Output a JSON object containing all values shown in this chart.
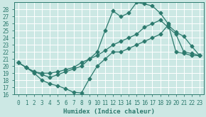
{
  "title": "",
  "xlabel": "Humidex (Indice chaleur)",
  "ylabel": "",
  "bg_color": "#cce8e4",
  "grid_color": "#b8d8d4",
  "line_color": "#2d7a6e",
  "xlim": [
    -0.5,
    23.5
  ],
  "ylim": [
    16,
    29
  ],
  "yticks": [
    16,
    17,
    18,
    19,
    20,
    21,
    22,
    23,
    24,
    25,
    26,
    27,
    28
  ],
  "xticks": [
    0,
    1,
    2,
    3,
    4,
    5,
    6,
    7,
    8,
    9,
    10,
    11,
    12,
    13,
    14,
    15,
    16,
    17,
    18,
    19,
    20,
    21,
    22,
    23
  ],
  "line_top_x": [
    0,
    1,
    2,
    3,
    4,
    5,
    6,
    7,
    8,
    9,
    10,
    11,
    12,
    13,
    14,
    15,
    16,
    17,
    18,
    19,
    20,
    21,
    22,
    23
  ],
  "line_top_y": [
    20.5,
    19.8,
    19.2,
    18.8,
    18.4,
    18.8,
    19.2,
    19.6,
    20.0,
    21.0,
    22.0,
    25.0,
    27.8,
    27.0,
    27.5,
    29.0,
    28.8,
    28.5,
    27.5,
    26.0,
    22.0,
    21.8,
    21.5,
    21.5
  ],
  "line_mid_x": [
    0,
    1,
    2,
    3,
    4,
    5,
    6,
    7,
    8,
    9,
    10,
    11,
    12,
    13,
    14,
    15,
    16,
    17,
    18,
    19,
    20,
    21,
    22,
    23
  ],
  "line_mid_y": [
    20.5,
    19.8,
    19.2,
    19.0,
    19.0,
    19.2,
    19.5,
    19.8,
    20.5,
    21.0,
    21.5,
    22.2,
    23.0,
    23.5,
    24.0,
    24.5,
    25.5,
    26.0,
    26.5,
    25.5,
    24.5,
    22.0,
    21.8,
    21.5
  ],
  "line_bot_x": [
    0,
    1,
    2,
    3,
    4,
    5,
    6,
    7,
    8,
    9,
    10,
    11,
    12,
    13,
    14,
    15,
    16,
    17,
    18,
    19,
    20,
    21,
    22,
    23
  ],
  "line_bot_y": [
    20.5,
    19.8,
    19.0,
    18.0,
    17.5,
    17.2,
    16.8,
    16.3,
    16.2,
    18.2,
    20.0,
    21.0,
    22.0,
    22.0,
    22.5,
    23.0,
    23.5,
    24.0,
    24.5,
    25.8,
    24.8,
    24.2,
    22.8,
    21.5
  ]
}
